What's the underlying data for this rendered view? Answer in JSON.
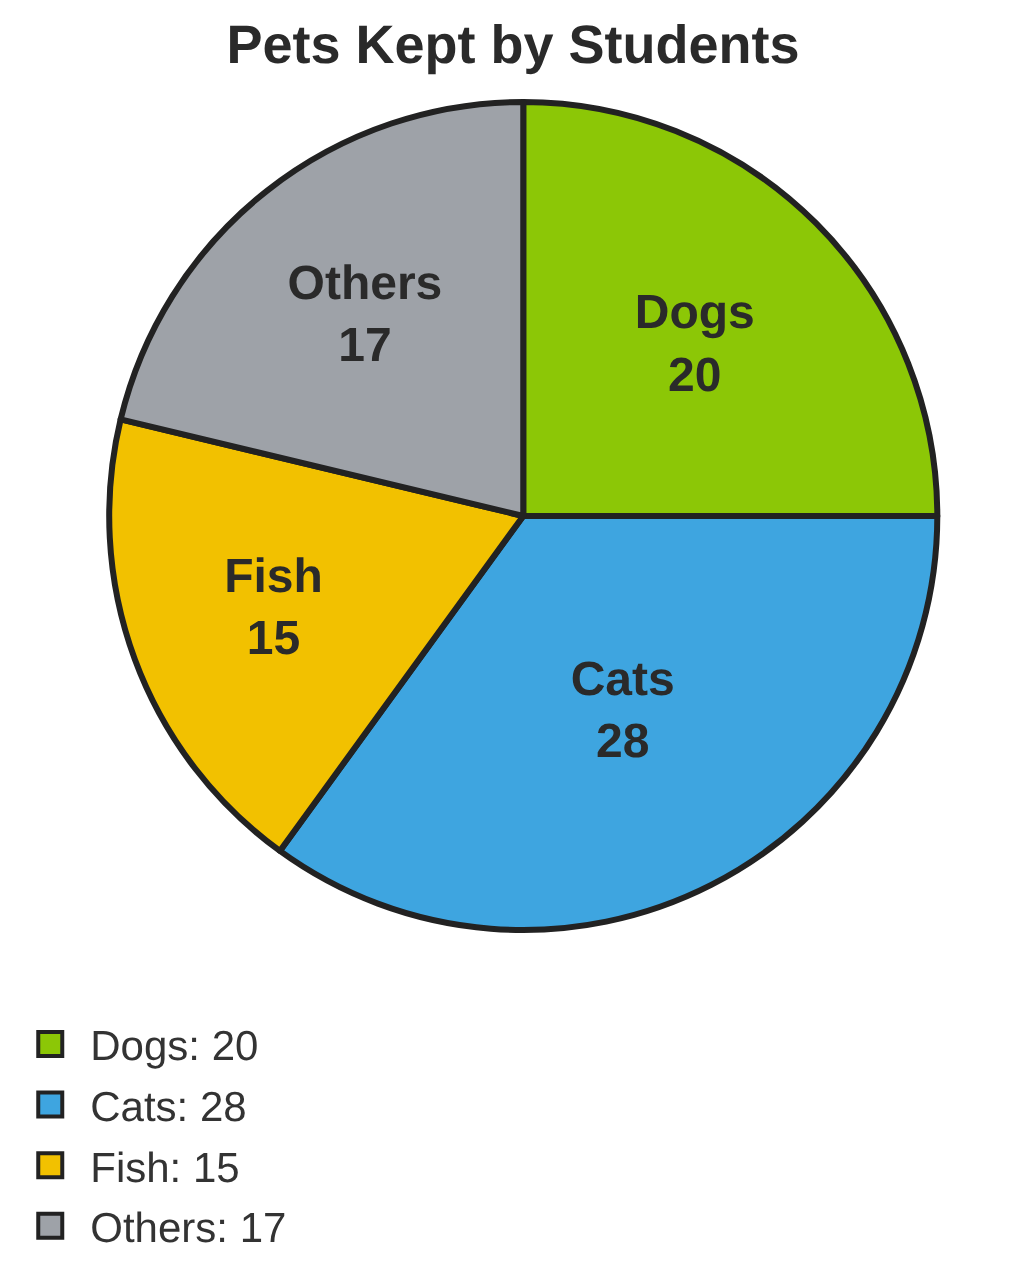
{
  "chart_data": {
    "type": "pie",
    "title": "Pets Kept by Students",
    "categories": [
      "Dogs",
      "Cats",
      "Fish",
      "Others"
    ],
    "values": [
      20,
      28,
      15,
      17
    ],
    "colors": [
      "#8cc706",
      "#3ea5e0",
      "#f2c100",
      "#9ea2a8"
    ],
    "data_labels": true,
    "annotations": [
      "Dogs: 20",
      "Cats: 28",
      "Fish: 15",
      "Others: 17"
    ]
  }
}
